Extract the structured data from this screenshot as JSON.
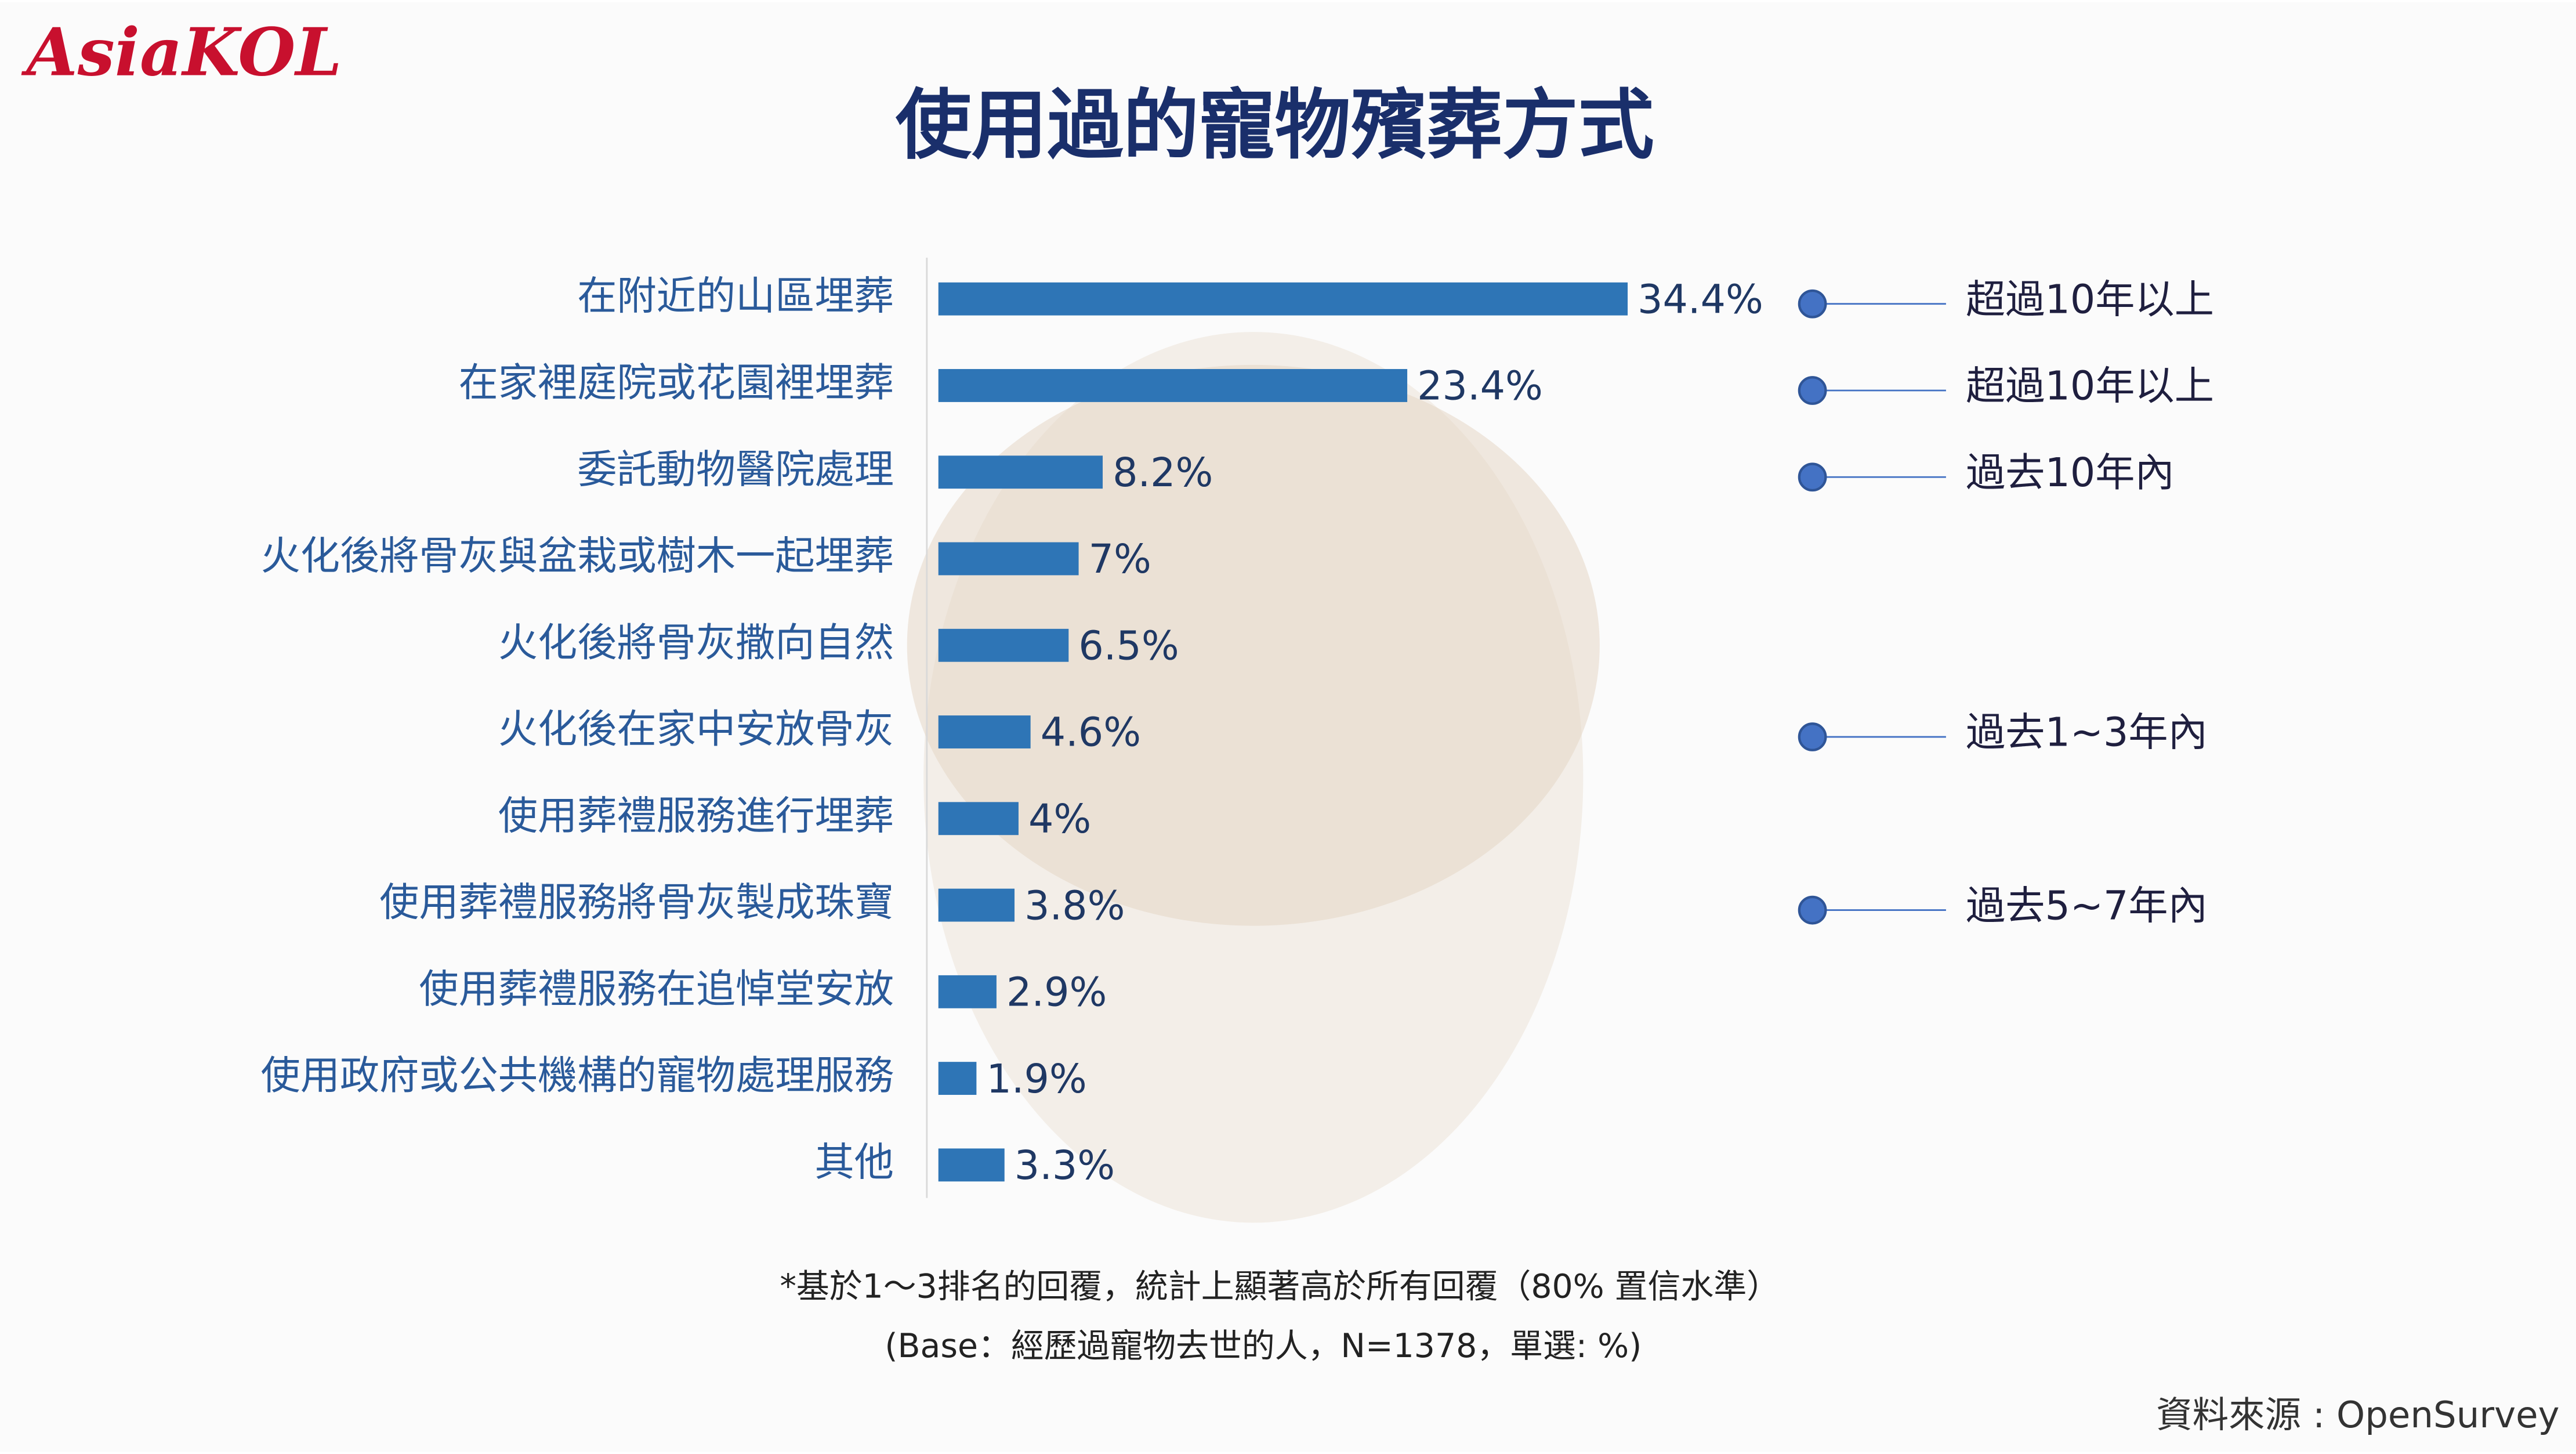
{
  "logo": "AsiaKOL",
  "chart_data": {
    "type": "bar",
    "orientation": "horizontal",
    "title": "使用過的寵物殯葬方式",
    "categories": [
      "在附近的山區埋葬",
      "在家裡庭院或花園裡埋葬",
      "委託動物醫院處理",
      "火化後將骨灰與盆栽或樹木一起埋葬",
      "火化後將骨灰撒向自然",
      "火化後在家中安放骨灰",
      "使用葬禮服務進行埋葬",
      "使用葬禮服務將骨灰製成珠寶",
      "使用葬禮服務在追悼堂安放",
      "使用政府或公共機構的寵物處理服務",
      "其他"
    ],
    "values": [
      34.4,
      23.4,
      8.2,
      7,
      6.5,
      4.6,
      4,
      3.8,
      2.9,
      1.9,
      3.3
    ],
    "value_labels": [
      "34.4%",
      "23.4%",
      "8.2%",
      "7%",
      "6.5%",
      "4.6%",
      "4%",
      "3.8%",
      "2.9%",
      "1.9%",
      "3.3%"
    ],
    "color": "#2e75b6",
    "annotations": [
      "超過10年以上",
      "超過10年以上",
      "過去10年內",
      null,
      null,
      "過去1~3年內",
      null,
      "過去5~7年內",
      null,
      null,
      null
    ],
    "notes": [
      "*基於1～3排名的回覆，統計上顯著高於所有回覆（80% 置信水準）",
      "(Base：經歷過寵物去世的人，N=1378，單選: %)"
    ],
    "source": "資料來源 : OpenSurvey"
  }
}
